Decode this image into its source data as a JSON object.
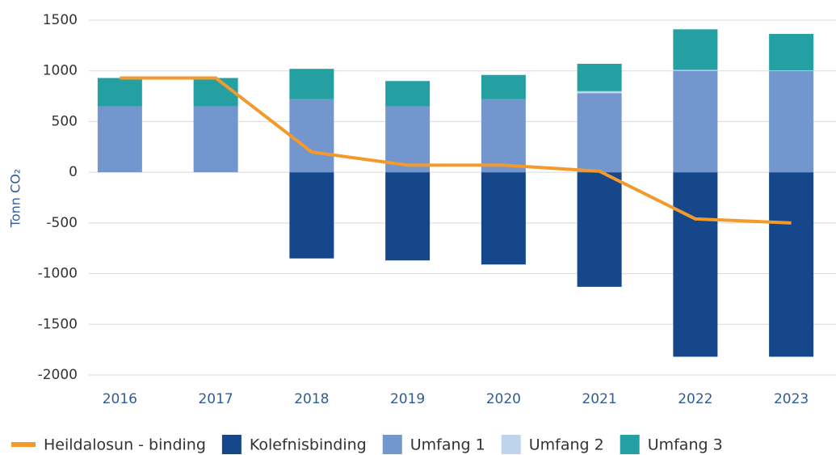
{
  "chart_data": {
    "type": "bar",
    "stacked": true,
    "y_label": "Tonn CO₂",
    "categories": [
      "2016",
      "2017",
      "2018",
      "2019",
      "2020",
      "2021",
      "2022",
      "2023"
    ],
    "series": [
      {
        "name": "Heildalosun - binding",
        "type": "line",
        "color": "#f39a2c",
        "values": [
          930,
          930,
          200,
          70,
          70,
          10,
          -460,
          -500
        ]
      },
      {
        "name": "Kolefnisbinding",
        "color": "#16478a",
        "values": [
          0,
          0,
          -850,
          -870,
          -910,
          -1130,
          -1820,
          -1820
        ]
      },
      {
        "name": "Umfang 1",
        "color": "#7496cf",
        "values": [
          650,
          650,
          720,
          650,
          720,
          780,
          1000,
          1000
        ]
      },
      {
        "name": "Umfang 2",
        "color": "#bed4ec",
        "values": [
          0,
          0,
          0,
          0,
          0,
          20,
          10,
          5
        ]
      },
      {
        "name": "Umfang 3",
        "color": "#24a0a3",
        "values": [
          280,
          280,
          300,
          250,
          240,
          270,
          400,
          360
        ]
      }
    ],
    "ylim": [
      -2000,
      1500
    ],
    "yticks": [
      -2000,
      -1500,
      -1000,
      -500,
      0,
      500,
      1000,
      1500
    ],
    "grid": true,
    "legend": "bottom"
  }
}
